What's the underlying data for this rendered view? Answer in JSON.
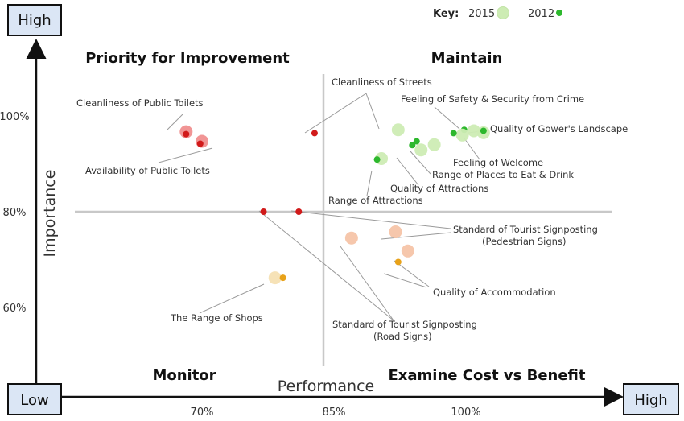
{
  "chart_data": {
    "type": "scatter",
    "x_axis": {
      "title": "Performance",
      "ticks": [
        {
          "value": 70,
          "label": "70%"
        },
        {
          "value": 85,
          "label": "85%"
        },
        {
          "value": 100,
          "label": "100%"
        }
      ],
      "low_label": "Low",
      "high_label": "High"
    },
    "y_axis": {
      "title": "Importance",
      "ticks": [
        {
          "value": 100,
          "label": "100%"
        },
        {
          "value": 80,
          "label": "80%"
        },
        {
          "value": 60,
          "label": "60%"
        }
      ],
      "low_label": "Low",
      "high_label": "High"
    },
    "quadrants": {
      "top_left": "Priority for Improvement",
      "top_right": "Maintain",
      "bottom_left": "Monitor",
      "bottom_right": "Examine Cost vs Benefit"
    },
    "key": {
      "title": "Key:",
      "items": [
        {
          "label": "2015",
          "marker": "large-light"
        },
        {
          "label": "2012",
          "marker": "small-dark"
        }
      ]
    },
    "colors": {
      "red_2015": "#f08f8f",
      "red_2012": "#d11a1a",
      "green_2015": "#cdecb4",
      "green_2012": "#2db82d",
      "orange_2015": "#f5c4a8",
      "orange_2012": "#e8a21a",
      "shop_2015": "#f6e0b3"
    },
    "points": [
      {
        "label": "Cleanliness of Public Toilets",
        "x2015": 68.2,
        "y2015": 96.7,
        "x2012": 68.2,
        "y2012": 96.2,
        "color": "red"
      },
      {
        "label": "Availability of Public Toilets",
        "x2015": 70.0,
        "y2015": 94.7,
        "x2012": 69.8,
        "y2012": 94.2,
        "color": "red"
      },
      {
        "label": "Cleanliness of Streets",
        "x2015": 92.3,
        "y2015": 97.1,
        "x2012": 82.8,
        "y2012": 96.4,
        "color": "mixed"
      },
      {
        "label": "Quality of Gower's Landscape",
        "x2015": 102.0,
        "y2015": 96.5,
        "x2012": 102.0,
        "y2012": 96.9,
        "color": "green"
      },
      {
        "label": "Feeling of Safety & Security from Crime",
        "x2015": 100.9,
        "y2015": 96.9,
        "x2012": 99.8,
        "y2012": 97.1,
        "color": "green"
      },
      {
        "label": "Feeling of Welcome",
        "x2015": 99.6,
        "y2015": 96.0,
        "x2012": 98.6,
        "y2012": 96.4,
        "color": "green"
      },
      {
        "label": "Range of Places to Eat & Drink",
        "x2015": 96.4,
        "y2015": 94.0,
        "x2012": 94.4,
        "y2012": 94.7,
        "color": "green"
      },
      {
        "label": "Quality of Attractions",
        "x2015": 94.9,
        "y2015": 92.9,
        "x2012": 93.9,
        "y2012": 93.9,
        "color": "green"
      },
      {
        "label": "Range of Attractions",
        "x2015": 90.4,
        "y2015": 91.1,
        "x2012": 89.9,
        "y2012": 90.9,
        "color": "green"
      },
      {
        "label": "Standard of Tourist Signposting (Pedestrian Signs)",
        "x2015": 92.0,
        "y2015": 75.8,
        "x2012": 81.0,
        "y2012": 80.0,
        "color": "mixed"
      },
      {
        "label": "Standard of Tourist Signposting (Road Signs)",
        "x2015": 87.0,
        "y2015": 74.5,
        "x2012": 77.0,
        "y2012": 80.0,
        "color": "mixed"
      },
      {
        "label": "Quality of Accommodation",
        "x2015": 93.4,
        "y2015": 71.8,
        "x2012": 92.3,
        "y2012": 69.5,
        "color": "orange"
      },
      {
        "label": "The Range of Shops",
        "x2015": 78.3,
        "y2015": 66.2,
        "x2012": 79.2,
        "y2012": 66.2,
        "color": "yellow"
      }
    ]
  }
}
